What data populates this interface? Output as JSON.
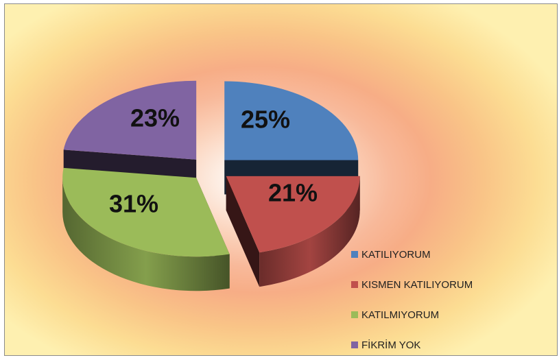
{
  "chart_data": {
    "type": "pie",
    "style": "3d-exploded",
    "categories": [
      "KATILIYORUM",
      "KISMEN KATILIYORUM",
      "KATILMIYORUM",
      "FİKRİM YOK"
    ],
    "values": [
      25,
      21,
      31,
      23
    ],
    "data_labels": [
      "25%",
      "21%",
      "31%",
      "23%"
    ],
    "colors": [
      "#4f81bd",
      "#c0504d",
      "#9bbb59",
      "#8064a2"
    ],
    "legend": {
      "position": "right",
      "items": [
        {
          "label": "KATILIYORUM",
          "color": "#4f81bd"
        },
        {
          "label": "KISMEN KATILIYORUM",
          "color": "#c0504d"
        },
        {
          "label": "KATILMIYORUM",
          "color": "#9bbb59"
        },
        {
          "label": "FİKRİM YOK",
          "color": "#8064a2"
        }
      ]
    }
  }
}
